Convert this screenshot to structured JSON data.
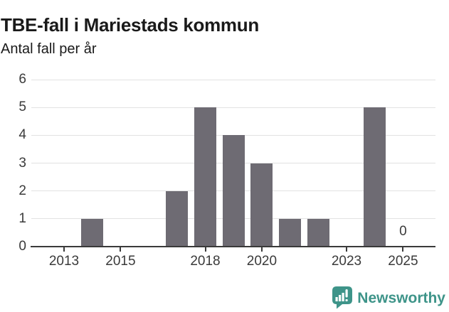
{
  "header": {
    "title": "TBE-fall i Mariestads kommun",
    "subtitle": "Antal fall per år"
  },
  "chart_data": {
    "type": "bar",
    "title": "TBE-fall i Mariestads kommun",
    "subtitle": "Antal fall per år",
    "categories": [
      "2013",
      "2014",
      "2015",
      "2016",
      "2017",
      "2018",
      "2019",
      "2020",
      "2021",
      "2022",
      "2023",
      "2024",
      "2025"
    ],
    "values": [
      0,
      1,
      0,
      0,
      2,
      5,
      4,
      3,
      1,
      1,
      0,
      5,
      0
    ],
    "xlabel": "",
    "ylabel": "",
    "ylim": [
      0,
      6
    ],
    "yticks": [
      0,
      1,
      2,
      3,
      4,
      5,
      6
    ],
    "xticks": [
      "2013",
      "2015",
      "2018",
      "2020",
      "2023",
      "2025"
    ],
    "grid": true,
    "legend": false,
    "bar_color": "#6e6b73",
    "annotations": [
      {
        "category": "2025",
        "text": "0"
      }
    ]
  },
  "footer": {
    "brand": "Newsworthy",
    "logo_icon": "newsworthy-badge-bar-chart",
    "brand_color": "#3e9489"
  },
  "colors": {
    "bar": "#6e6b73",
    "grid": "#e2e2e2",
    "axis": "#3a3a3a",
    "text": "#1a1a1a",
    "brand_teal": "#3e9489"
  }
}
